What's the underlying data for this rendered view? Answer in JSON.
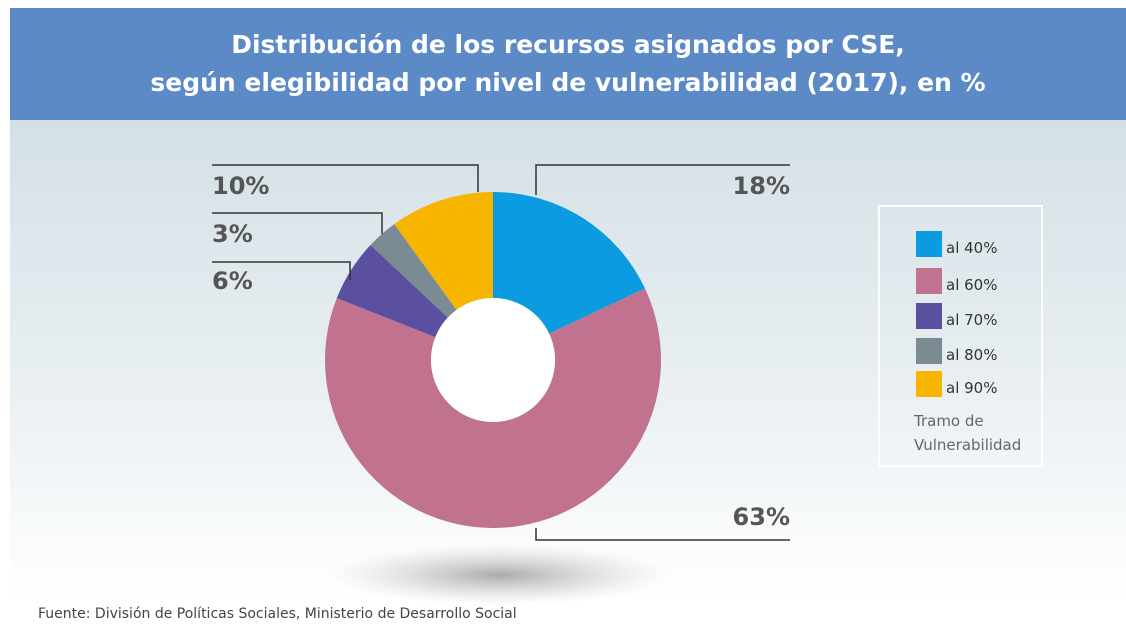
{
  "chart_data": {
    "type": "donut",
    "title": [
      "Distribución de los recursos asignados por CSE,",
      "según elegibilidad por nivel de vulnerabilidad (2017), en %"
    ],
    "categories": [
      "al 40%",
      "al 60%",
      "al 70%",
      "al 80%",
      "al 90%"
    ],
    "values": [
      18,
      63,
      6,
      3,
      10
    ],
    "value_labels": [
      "18%",
      "63%",
      "6%",
      "3%",
      "10%"
    ],
    "colors": [
      "#0a9be0",
      "#c0728f",
      "#5b4f9f",
      "#7a8b94",
      "#f7b500"
    ],
    "legend_title": "Tramo de Vulnerabilidad",
    "source": "Fuente: División de Políticas Sociales, Ministerio de Desarrollo Social"
  }
}
